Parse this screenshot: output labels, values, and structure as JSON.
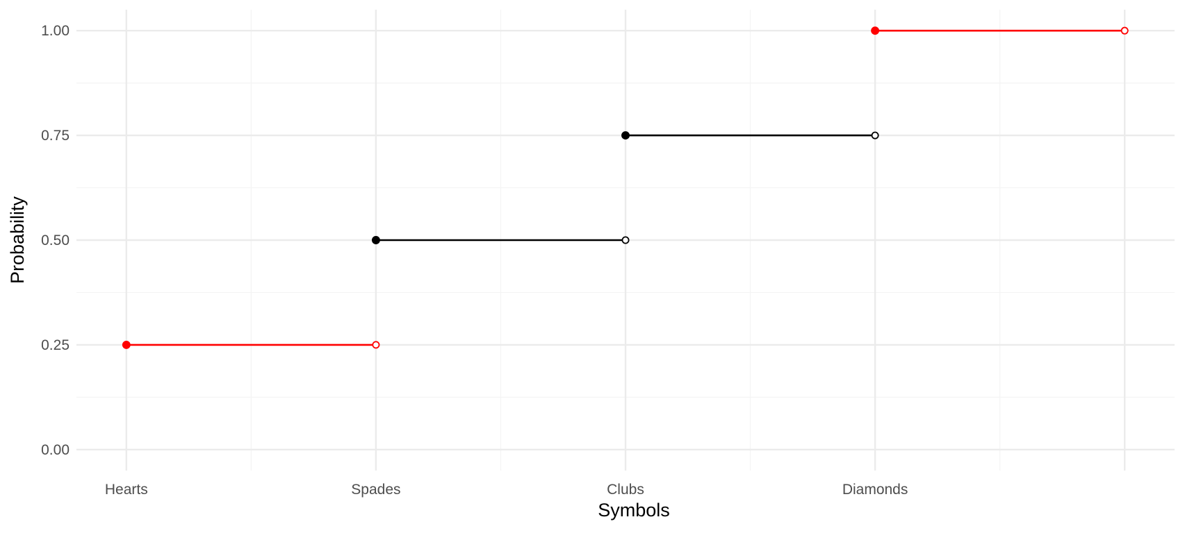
{
  "chart_data": {
    "type": "step",
    "title": "",
    "xlabel": "Symbols",
    "ylabel": "Probability",
    "categories": [
      "Hearts",
      "Spades",
      "Clubs",
      "Diamonds"
    ],
    "x_positions": [
      1,
      2,
      3,
      4
    ],
    "xlim": [
      0.8,
      5.2
    ],
    "ylim": [
      -0.05,
      1.05
    ],
    "y_ticks": [
      0.0,
      0.25,
      0.5,
      0.75,
      1.0
    ],
    "y_tick_labels": [
      "0.00",
      "0.25",
      "0.50",
      "0.75",
      "1.00"
    ],
    "grid": true,
    "segments": [
      {
        "x_start": 1,
        "x_end": 2,
        "y": 0.25,
        "color": "#ff0000"
      },
      {
        "x_start": 2,
        "x_end": 3,
        "y": 0.5,
        "color": "#000000"
      },
      {
        "x_start": 3,
        "x_end": 4,
        "y": 0.75,
        "color": "#000000"
      },
      {
        "x_start": 4,
        "x_end": 5,
        "y": 1.0,
        "color": "#ff0000"
      }
    ],
    "grid_color_major": "#ebebeb",
    "grid_color_minor": "#f4f4f4"
  }
}
